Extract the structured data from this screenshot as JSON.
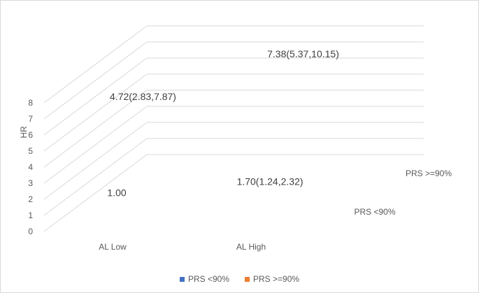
{
  "chart_data": {
    "type": "bar",
    "subtype": "3d-column",
    "categories": [
      "AL Low",
      "AL High"
    ],
    "series": [
      {
        "name": "PRS <90%",
        "values": [
          1.0,
          1.7
        ],
        "labels": [
          "1.00",
          "1.70(1.24,2.32)"
        ],
        "color": "#4472C4"
      },
      {
        "name": "PRS >=90%",
        "values": [
          4.72,
          7.38
        ],
        "labels": [
          "4.72(2.83,7.87)",
          "7.38(5.37,10.15)"
        ],
        "color": "#ED7D31"
      }
    ],
    "ylabel": "HR",
    "ylim": [
      0,
      8
    ],
    "yticks": [
      "0",
      "1",
      "2",
      "3",
      "4",
      "5",
      "6",
      "7",
      "8"
    ],
    "grid": true,
    "legend": "bottom"
  }
}
